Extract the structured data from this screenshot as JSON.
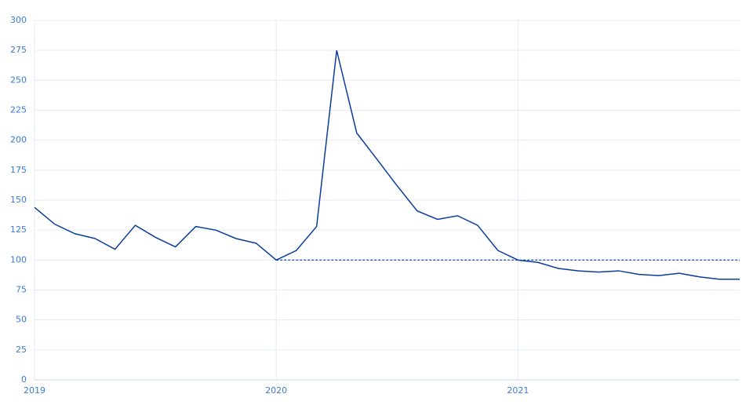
{
  "chart_data": {
    "type": "line",
    "x": [
      2019,
      2019.083,
      2019.167,
      2019.25,
      2019.333,
      2019.417,
      2019.5,
      2019.583,
      2019.667,
      2019.75,
      2019.833,
      2019.917,
      2020,
      2020.083,
      2020.167,
      2020.25,
      2020.333,
      2020.417,
      2020.5,
      2020.583,
      2020.667,
      2020.75,
      2020.833,
      2020.917,
      2021,
      2021.083,
      2021.167,
      2021.25,
      2021.333,
      2021.417,
      2021.5,
      2021.583,
      2021.667,
      2021.75,
      2021.833,
      2021.917
    ],
    "series": [
      {
        "color": "#0b3d9c",
        "values": [
          144,
          130,
          122,
          118,
          109,
          129,
          119,
          111,
          128,
          125,
          118,
          114,
          100,
          108,
          128,
          275,
          206,
          184,
          162,
          141,
          134,
          137,
          129,
          108,
          100,
          98,
          93,
          91,
          90,
          91,
          88,
          87,
          89,
          86,
          84,
          84
        ]
      }
    ],
    "reference_line": {
      "y": 100,
      "x": [
        2020,
        2021.917
      ],
      "color": "#0b3d9c"
    },
    "xlim": [
      2019,
      2021.917
    ],
    "xticks": [
      2019,
      2020,
      2021
    ],
    "ylim": [
      0,
      300
    ],
    "yticks": [
      0,
      25,
      50,
      75,
      100,
      125,
      150,
      175,
      200,
      225,
      250,
      275,
      300
    ],
    "grid": true
  }
}
